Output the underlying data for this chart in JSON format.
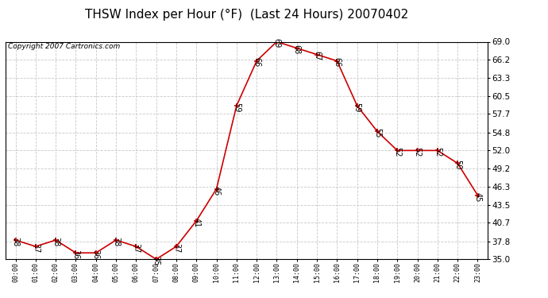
{
  "title": "THSW Index per Hour (°F)  (Last 24 Hours) 20070402",
  "copyright": "Copyright 2007 Cartronics.com",
  "hours": [
    "00:00",
    "01:00",
    "02:00",
    "03:00",
    "04:00",
    "05:00",
    "06:00",
    "07:00",
    "08:00",
    "09:00",
    "10:00",
    "11:00",
    "12:00",
    "13:00",
    "14:00",
    "15:00",
    "16:00",
    "17:00",
    "18:00",
    "19:00",
    "20:00",
    "21:00",
    "22:00",
    "23:00"
  ],
  "values": [
    38,
    37,
    38,
    36,
    36,
    38,
    37,
    35,
    37,
    41,
    46,
    59,
    66,
    69,
    68,
    67,
    66,
    59,
    55,
    52,
    52,
    52,
    50,
    45
  ],
  "ylim": [
    35.0,
    69.0
  ],
  "yticks": [
    35.0,
    37.8,
    40.7,
    43.5,
    46.3,
    49.2,
    52.0,
    54.8,
    57.7,
    60.5,
    63.3,
    66.2,
    69.0
  ],
  "line_color": "#cc0000",
  "marker_color": "#cc0000",
  "bg_color": "#ffffff",
  "grid_color": "#c8c8c8",
  "title_fontsize": 11,
  "copyright_fontsize": 6.5,
  "label_fontsize": 7
}
